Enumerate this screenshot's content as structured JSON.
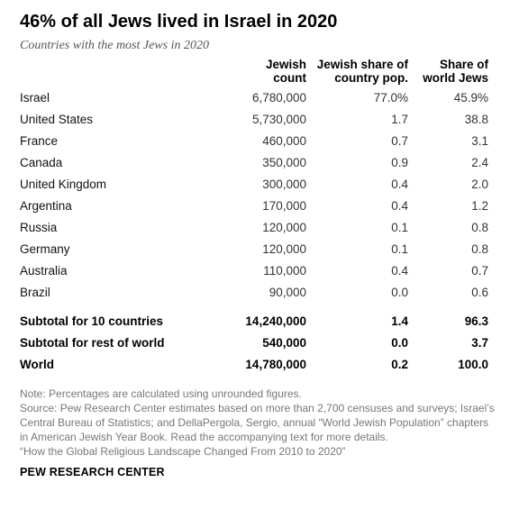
{
  "title": "46% of all Jews lived in Israel in 2020",
  "subtitle": "Countries with the most Jews in 2020",
  "chart_data": {
    "type": "table",
    "columns": [
      "",
      "Jewish\ncount",
      "Jewish share of\ncountry pop.",
      "Share of\nworld Jews"
    ],
    "rows": [
      [
        "Israel",
        "6,780,000",
        "77.0%",
        "45.9%"
      ],
      [
        "United States",
        "5,730,000",
        "1.7",
        "38.8"
      ],
      [
        "France",
        "460,000",
        "0.7",
        "3.1"
      ],
      [
        "Canada",
        "350,000",
        "0.9",
        "2.4"
      ],
      [
        "United Kingdom",
        "300,000",
        "0.4",
        "2.0"
      ],
      [
        "Argentina",
        "170,000",
        "0.4",
        "1.2"
      ],
      [
        "Russia",
        "120,000",
        "0.1",
        "0.8"
      ],
      [
        "Germany",
        "120,000",
        "0.1",
        "0.8"
      ],
      [
        "Australia",
        "110,000",
        "0.4",
        "0.7"
      ],
      [
        "Brazil",
        "90,000",
        "0.0",
        "0.6"
      ]
    ],
    "subtotals": [
      [
        "Subtotal for 10 countries",
        "14,240,000",
        "1.4",
        "96.3"
      ],
      [
        "Subtotal for rest of world",
        "540,000",
        "0.0",
        "3.7"
      ],
      [
        "World",
        "14,780,000",
        "0.2",
        "100.0"
      ]
    ]
  },
  "notes": [
    "Note: Percentages are calculated using unrounded figures.",
    "Source: Pew Research Center estimates based on more than 2,700 censuses and surveys; Israel’s Central Bureau of Statistics; and DellaPergola, Sergio, annual “World Jewish Population” chapters in American Jewish Year Book. Read the accompanying text for more details.",
    "“How the Global Religious Landscape Changed From 2010 to 2020”"
  ],
  "brand": "PEW RESEARCH CENTER"
}
